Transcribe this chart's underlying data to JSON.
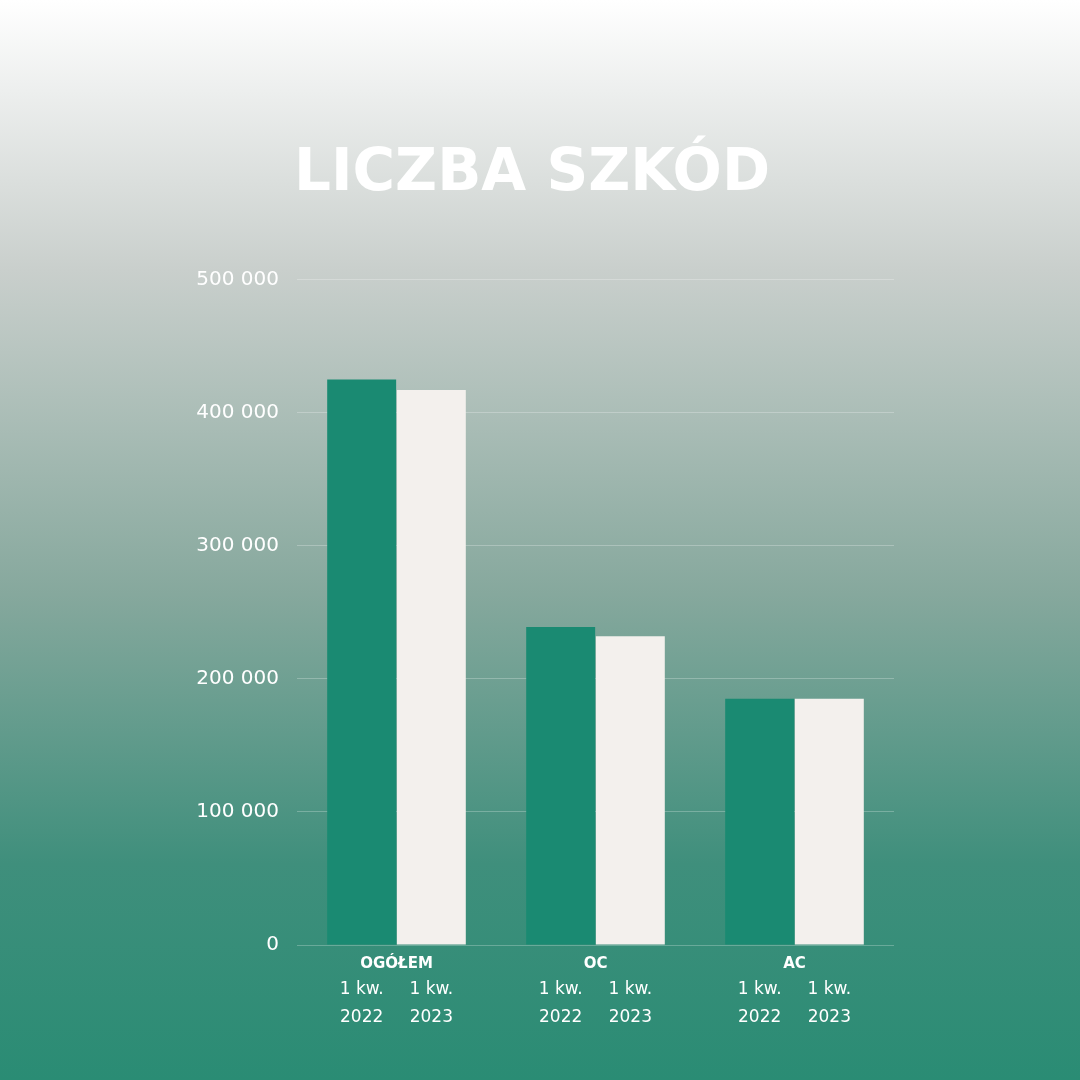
{
  "chart_data": {
    "type": "bar",
    "title": "LICZBA SZKÓD",
    "categories": [
      "OGÓŁEM",
      "OC",
      "AC"
    ],
    "series": [
      {
        "name": "1 kw. 2022",
        "color": "#1a8a72",
        "values": [
          425000,
          239000,
          185000
        ]
      },
      {
        "name": "1 kw. 2023",
        "color": "#f3f0ed",
        "values": [
          417000,
          232000,
          185000
        ]
      }
    ],
    "ylim": [
      0,
      500000
    ],
    "yticks": [
      0,
      100000,
      200000,
      300000,
      400000,
      500000
    ],
    "grid": "y",
    "legend": false
  }
}
